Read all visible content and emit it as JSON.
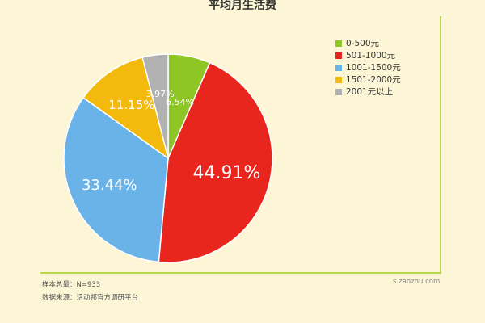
{
  "chart_data": {
    "type": "pie",
    "title": "平均月生活费",
    "categories": [
      "0-500元",
      "501-1000元",
      "1001-1500元",
      "1501-2000元",
      "2001元以上"
    ],
    "values": [
      6.54,
      44.91,
      33.44,
      11.15,
      3.97
    ],
    "labels": [
      "6.54%",
      "44.91%",
      "33.44%",
      "11.15%",
      "3.97%"
    ],
    "colors": [
      "#8dc625",
      "#e8261e",
      "#6ab3e8",
      "#f3b90c",
      "#b1b1b1"
    ],
    "label_colors": [
      "#ffffff",
      "#ffffff",
      "#ffffff",
      "#ffffff",
      "#ffffff"
    ],
    "legend_position": "top-right"
  },
  "footer": {
    "sample": "样本总量：N=933",
    "source": "数据来源：活动邦官方调研平台",
    "site": "s.zanzhu.com"
  }
}
